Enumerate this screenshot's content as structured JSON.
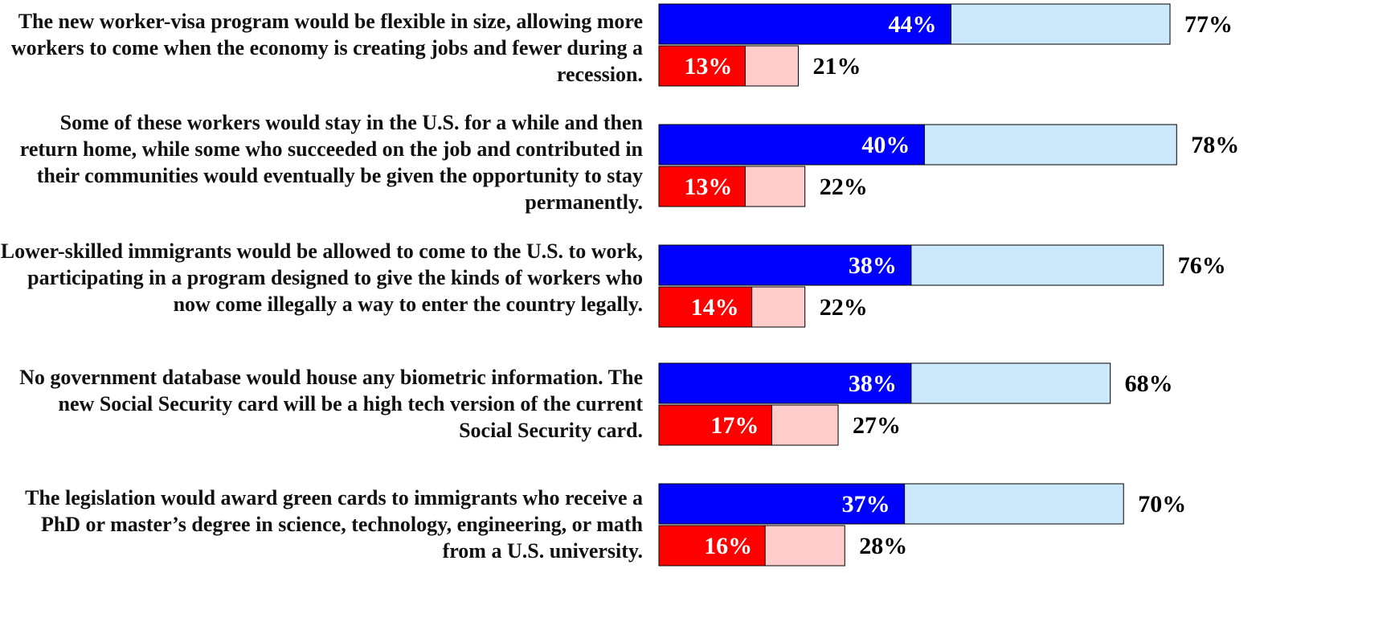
{
  "chart_data": {
    "type": "bar",
    "orientation": "horizontal",
    "categories": [
      "The new worker-visa program would be flexible in size, allowing more workers to come when the economy is creating jobs and fewer during a recession.",
      "Some of these workers would stay in the U.S. for a while and then return home, while some who succeeded on the job and contributed in their communities would eventually be given the opportunity to stay permanently.",
      "Lower-skilled immigrants would be allowed to come to the U.S. to work, participating in a program designed to give the kinds of workers who now come illegally a way to enter the country legally.",
      "No government database would house any biometric information. The new Social Security card will be a high tech version of the current Social Security card.",
      "The legislation would award green cards to immigrants who receive a PhD or master’s degree in science, technology, engineering, or math from a U.S. university."
    ],
    "series": [
      {
        "values": [
          44,
          40,
          38,
          38,
          37
        ],
        "labels": [
          "44%",
          "40%",
          "38%",
          "38%",
          "37%"
        ],
        "color": "#0000ff"
      },
      {
        "values": [
          77,
          78,
          76,
          68,
          70
        ],
        "labels": [
          "77%",
          "78%",
          "76%",
          "68%",
          "70%"
        ],
        "color": "#cce9fb"
      },
      {
        "values": [
          13,
          13,
          14,
          17,
          16
        ],
        "labels": [
          "13%",
          "13%",
          "14%",
          "17%",
          "16%"
        ],
        "color": "#ff0000"
      },
      {
        "values": [
          21,
          22,
          22,
          27,
          28
        ],
        "labels": [
          "21%",
          "22%",
          "22%",
          "27%",
          "28%"
        ],
        "color": "#ffcccc"
      }
    ],
    "title": "",
    "xlabel": "",
    "ylabel": "",
    "xlim": [
      0,
      100
    ],
    "grid": false,
    "legend": "none"
  }
}
